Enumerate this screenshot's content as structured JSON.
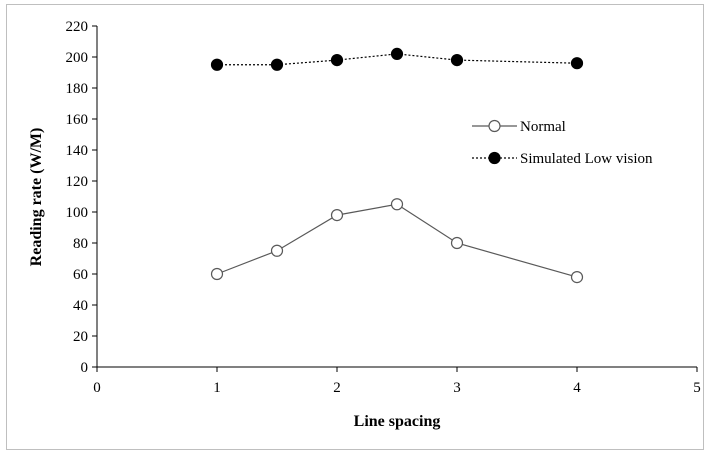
{
  "chart_data": {
    "type": "line",
    "title": "",
    "xlabel": "Line spacing",
    "ylabel": "Reading rate (W/M)",
    "xlim": [
      0,
      5
    ],
    "ylim": [
      0,
      220
    ],
    "xticks": [
      0,
      1,
      2,
      3,
      4,
      5
    ],
    "yticks": [
      0,
      20,
      40,
      60,
      80,
      100,
      120,
      140,
      160,
      180,
      200,
      220
    ],
    "grid": false,
    "legend_position": "right",
    "series": [
      {
        "name": "Normal",
        "x": [
          1,
          1.5,
          2,
          2.5,
          3,
          4
        ],
        "y": [
          60,
          75,
          98,
          105,
          80,
          58
        ],
        "marker": "open-circle",
        "line_style": "solid",
        "color": "#595959"
      },
      {
        "name": "Simulated Low vision",
        "x": [
          1,
          1.5,
          2,
          2.5,
          3,
          4
        ],
        "y": [
          195,
          195,
          198,
          202,
          198,
          196
        ],
        "marker": "filled-circle",
        "line_style": "dotted",
        "color": "#000000"
      }
    ]
  }
}
